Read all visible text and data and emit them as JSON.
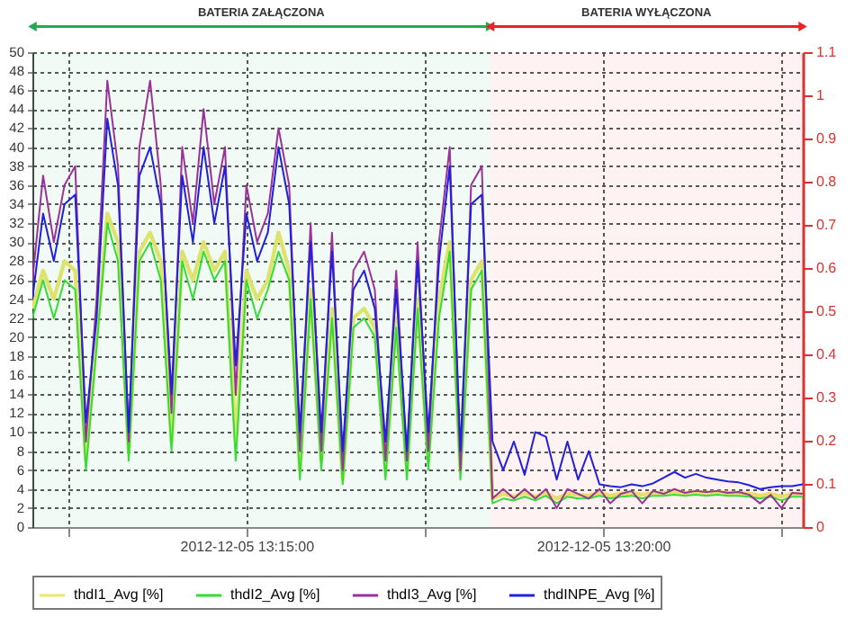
{
  "chart_data": {
    "type": "line",
    "x": [
      "2012-12-05T13:12:00",
      "2012-12-05T13:12:09",
      "2012-12-05T13:12:18",
      "2012-12-05T13:12:27",
      "2012-12-05T13:12:36",
      "2012-12-05T13:12:45",
      "2012-12-05T13:12:54",
      "2012-12-05T13:13:03",
      "2012-12-05T13:13:12",
      "2012-12-05T13:13:21",
      "2012-12-05T13:13:30",
      "2012-12-05T13:13:39",
      "2012-12-05T13:13:48",
      "2012-12-05T13:13:57",
      "2012-12-05T13:14:06",
      "2012-12-05T13:14:15",
      "2012-12-05T13:14:24",
      "2012-12-05T13:14:33",
      "2012-12-05T13:14:42",
      "2012-12-05T13:14:51",
      "2012-12-05T13:15:00",
      "2012-12-05T13:15:09",
      "2012-12-05T13:15:18",
      "2012-12-05T13:15:27",
      "2012-12-05T13:15:36",
      "2012-12-05T13:15:45",
      "2012-12-05T13:15:54",
      "2012-12-05T13:16:03",
      "2012-12-05T13:16:12",
      "2012-12-05T13:16:21",
      "2012-12-05T13:16:30",
      "2012-12-05T13:16:39",
      "2012-12-05T13:16:48",
      "2012-12-05T13:16:57",
      "2012-12-05T13:17:06",
      "2012-12-05T13:17:15",
      "2012-12-05T13:17:24",
      "2012-12-05T13:17:33",
      "2012-12-05T13:17:42",
      "2012-12-05T13:17:51",
      "2012-12-05T13:18:00",
      "2012-12-05T13:18:09",
      "2012-12-05T13:18:18",
      "2012-12-05T13:18:27",
      "2012-12-05T13:18:36",
      "2012-12-05T13:18:45",
      "2012-12-05T13:18:54",
      "2012-12-05T13:19:03",
      "2012-12-05T13:19:12",
      "2012-12-05T13:19:21",
      "2012-12-05T13:19:30",
      "2012-12-05T13:19:39",
      "2012-12-05T13:19:48",
      "2012-12-05T13:19:57",
      "2012-12-05T13:20:06",
      "2012-12-05T13:20:15",
      "2012-12-05T13:20:24",
      "2012-12-05T13:20:33",
      "2012-12-05T13:20:42",
      "2012-12-05T13:20:51",
      "2012-12-05T13:21:00",
      "2012-12-05T13:21:09",
      "2012-12-05T13:21:18",
      "2012-12-05T13:21:27",
      "2012-12-05T13:21:36",
      "2012-12-05T13:21:45",
      "2012-12-05T13:21:54",
      "2012-12-05T13:22:03",
      "2012-12-05T13:22:12",
      "2012-12-05T13:22:21",
      "2012-12-05T13:22:30",
      "2012-12-05T13:22:39",
      "2012-12-05T13:22:48"
    ],
    "series": [
      {
        "name": "thdI1_Avg [%]",
        "color": "#e8e870",
        "values": [
          23,
          27,
          24,
          28,
          27,
          7,
          20,
          33,
          30,
          8,
          29,
          31,
          28,
          9,
          29,
          26,
          30,
          27,
          29,
          9,
          27,
          24,
          26,
          31,
          27,
          6,
          25,
          7,
          23,
          5,
          22,
          23,
          21,
          6,
          22,
          6,
          24,
          7,
          24,
          30,
          6,
          26,
          28,
          3,
          3.5,
          3.2,
          3.6,
          3.2,
          3.6,
          3,
          3.5,
          3.4,
          3.3,
          3.6,
          3.3,
          3.5,
          3.6,
          3.4,
          3.6,
          3.6,
          3.7,
          3.6,
          3.7,
          3.6,
          3.7,
          3.6,
          3.6,
          3.5,
          3.3,
          3.5,
          3.2,
          3.5,
          3.5
        ]
      },
      {
        "name": "thdI2_Avg [%]",
        "color": "#33dd33",
        "values": [
          22,
          26,
          22,
          26,
          25,
          6,
          19,
          32,
          28,
          7,
          28,
          30,
          26,
          8,
          28,
          24,
          29,
          26,
          28,
          7,
          26,
          22,
          25,
          29,
          26,
          5,
          24,
          6,
          22,
          4.5,
          21,
          22,
          20,
          5,
          21,
          5,
          23,
          6,
          22,
          29,
          5,
          25,
          27,
          2.5,
          3,
          2.8,
          3.2,
          2.8,
          3.3,
          2.5,
          3.2,
          3,
          3,
          3.3,
          3,
          3.2,
          3.3,
          3,
          3.3,
          3.3,
          3.4,
          3.3,
          3.4,
          3.3,
          3.4,
          3.3,
          3.3,
          3.2,
          3,
          3.2,
          2.8,
          3.2,
          3.2
        ]
      },
      {
        "name": "thdI3_Avg [%]",
        "color": "#993399",
        "values": [
          26,
          37,
          30,
          36,
          38,
          9,
          24,
          47,
          38,
          9,
          40,
          47,
          36,
          12,
          40,
          32,
          44,
          34,
          40,
          14,
          36,
          30,
          33,
          42,
          36,
          8,
          32,
          8,
          31,
          6,
          27,
          29,
          25,
          7,
          27,
          7,
          30,
          8,
          30,
          40,
          6,
          36,
          38,
          3,
          4,
          3,
          4,
          3,
          4,
          2,
          4,
          3.5,
          3,
          4,
          2.5,
          3.5,
          3.8,
          2.5,
          3.8,
          3.5,
          4,
          3.6,
          3.8,
          3.7,
          3.8,
          3.6,
          3.7,
          3.4,
          2.5,
          3.4,
          2,
          3.6,
          3.5
        ]
      },
      {
        "name": "thdINPE_Avg [%]",
        "color": "#2020dd",
        "values": [
          24,
          33,
          28,
          34,
          35,
          11,
          22,
          43,
          36,
          10,
          37,
          40,
          34,
          14,
          37,
          30,
          40,
          32,
          38,
          17,
          33,
          28,
          31,
          40,
          34,
          10,
          30,
          10,
          29,
          8,
          25,
          27,
          23,
          9,
          25,
          8,
          28,
          10,
          28,
          38,
          8,
          34,
          35,
          9,
          6,
          9,
          5.5,
          10,
          9.5,
          5,
          9,
          5,
          8,
          4.5,
          4.3,
          4.2,
          4.5,
          4.3,
          4.6,
          5.2,
          5.8,
          5.2,
          5.6,
          5.2,
          5,
          4.8,
          4.7,
          4.4,
          4,
          4.2,
          4.3,
          4.3,
          4.5
        ]
      }
    ],
    "xlim": [
      "2012-12-05T13:12:00",
      "2012-12-05T13:22:48"
    ],
    "xticks": [
      {
        "value": "2012-12-05T13:12:30",
        "label": null
      },
      {
        "value": "2012-12-05T13:15",
        "label": "2012-12-05 13:15:00"
      },
      {
        "value": "2012-12-05T13:17:30",
        "label": null
      },
      {
        "value": "2012-12-05T13:20",
        "label": "2012-12-05 13:20:00"
      },
      {
        "value": "2012-12-05T13:22:30",
        "label": null
      }
    ],
    "ylim": [
      0,
      50
    ],
    "yticks": [
      0,
      2,
      4,
      6,
      8,
      10,
      12,
      14,
      16,
      18,
      20,
      22,
      24,
      26,
      28,
      30,
      32,
      34,
      36,
      38,
      40,
      42,
      44,
      46,
      48,
      50
    ],
    "y2lim": [
      0,
      1.1
    ],
    "y2ticks": [
      0,
      0.1,
      0.2,
      0.3,
      0.4,
      0.5,
      0.6,
      0.7,
      0.8,
      0.9,
      1,
      1.1
    ],
    "bands": [
      {
        "axis": "x",
        "from": "2012-12-05T13:12:00",
        "to": "2012-12-05T13:18:25",
        "label": "BATERIA ZAŁĄCZONA",
        "color": "#22aa55"
      },
      {
        "axis": "x",
        "from": "2012-12-05T13:18:25",
        "to": "2012-12-05T13:22:48",
        "label": "BATERIA WYŁĄCZONA",
        "color": "#ee2222"
      }
    ],
    "grid": true,
    "legend": "bottom"
  }
}
